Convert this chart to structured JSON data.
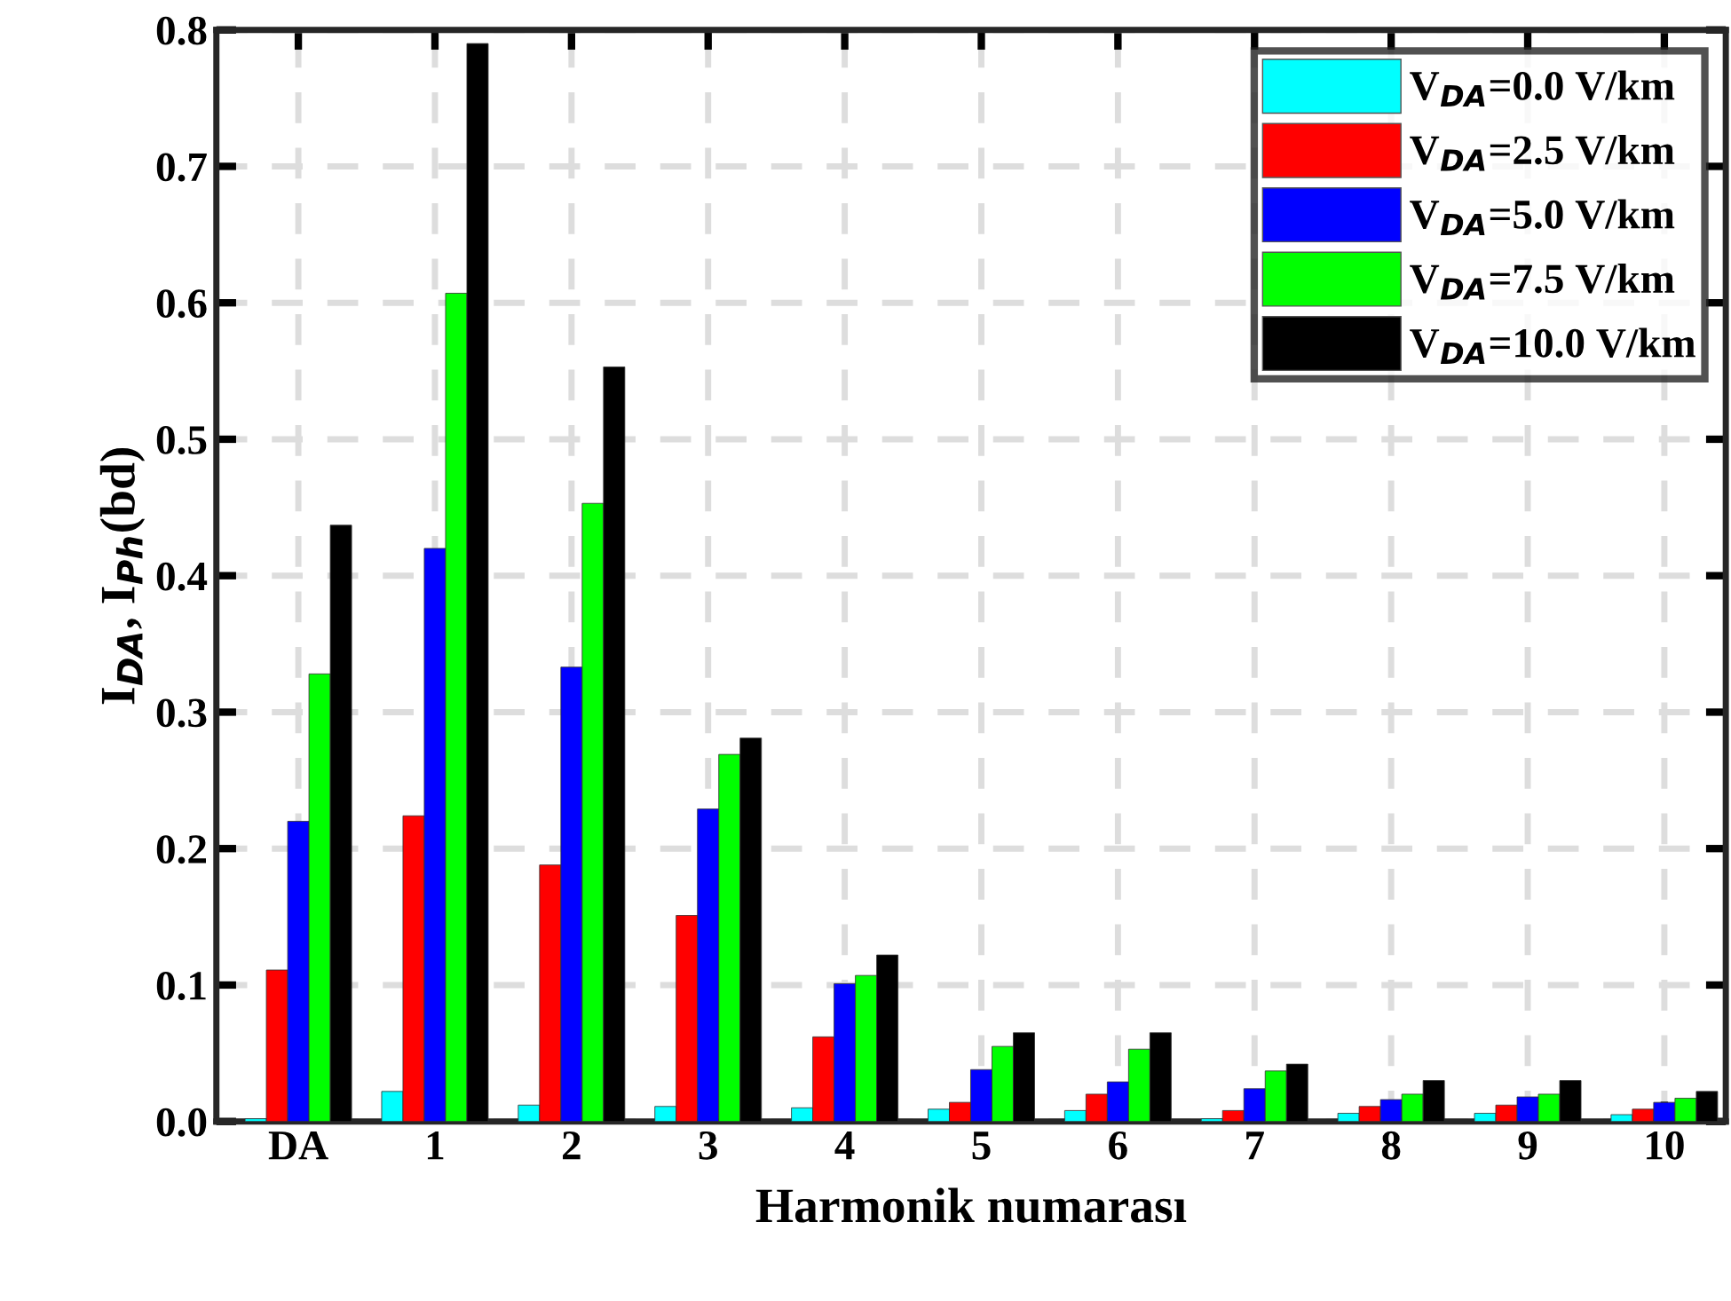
{
  "chart_data": {
    "type": "bar",
    "xlabel": "Harmonik numarası",
    "ylabel": "I$_{DA}$, I$_{Ph}$(bd)",
    "categories": [
      "DA",
      "1",
      "2",
      "3",
      "4",
      "5",
      "6",
      "7",
      "8",
      "9",
      "10"
    ],
    "series": [
      {
        "name": "V$_{DA}$=0.0 V/km",
        "color": "#00ffff",
        "values": [
          0.002,
          0.022,
          0.012,
          0.011,
          0.01,
          0.009,
          0.008,
          0.002,
          0.006,
          0.006,
          0.005
        ]
      },
      {
        "name": "V$_{DA}$=2.5 V/km",
        "color": "#ff0000",
        "values": [
          0.111,
          0.224,
          0.188,
          0.151,
          0.062,
          0.014,
          0.02,
          0.008,
          0.011,
          0.012,
          0.009
        ]
      },
      {
        "name": "V$_{DA}$=5.0 V/km",
        "color": "#0000ff",
        "values": [
          0.22,
          0.42,
          0.333,
          0.229,
          0.101,
          0.038,
          0.029,
          0.024,
          0.016,
          0.018,
          0.014
        ]
      },
      {
        "name": "V$_{DA}$=7.5 V/km",
        "color": "#00ff00",
        "values": [
          0.328,
          0.607,
          0.453,
          0.269,
          0.107,
          0.055,
          0.053,
          0.037,
          0.02,
          0.02,
          0.017
        ]
      },
      {
        "name": "V$_{DA}$=10.0 V/km",
        "color": "#000000",
        "values": [
          0.437,
          0.79,
          0.553,
          0.281,
          0.122,
          0.065,
          0.065,
          0.042,
          0.03,
          0.03,
          0.022
        ]
      }
    ],
    "ylim": [
      0,
      0.8
    ],
    "yticks": [
      {
        "value": 0,
        "label": "0.0"
      },
      {
        "value": 0.1,
        "label": "0.1"
      },
      {
        "value": 0.2,
        "label": "0.2"
      },
      {
        "value": 0.3,
        "label": "0.3"
      },
      {
        "value": 0.4,
        "label": "0.4"
      },
      {
        "value": 0.5,
        "label": "0.5"
      },
      {
        "value": 0.6,
        "label": "0.6"
      },
      {
        "value": 0.7,
        "label": "0.7"
      },
      {
        "value": 0.8,
        "label": "0.8"
      }
    ],
    "grid": true,
    "legend": "top right"
  }
}
